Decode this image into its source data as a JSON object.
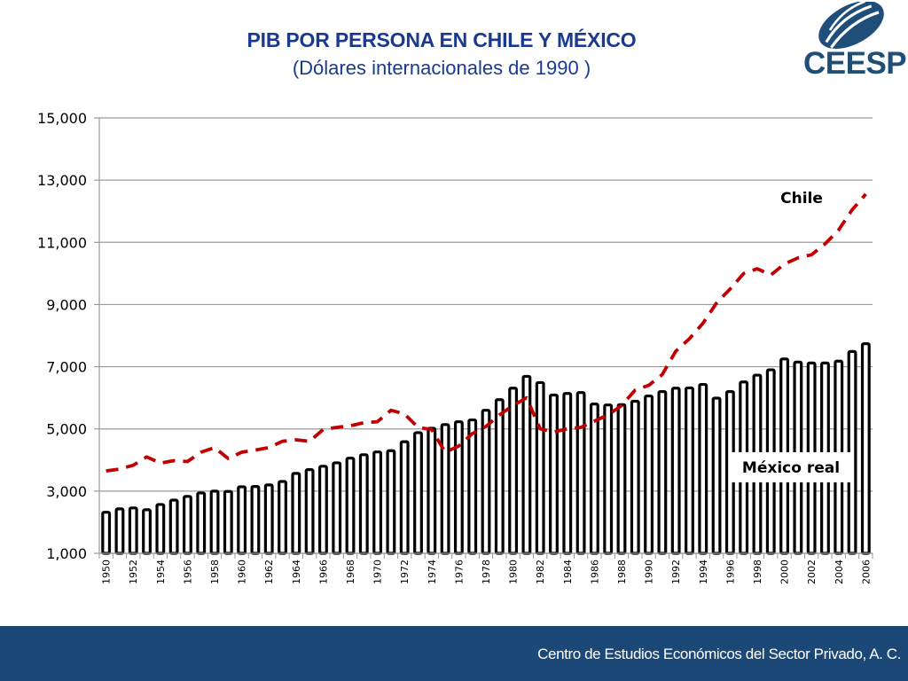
{
  "header": {
    "title": "PIB POR PERSONA EN CHILE Y MÉXICO",
    "subtitle": "(Dólares  internacionales de 1990 )"
  },
  "logo": {
    "text": "CEESP",
    "icon": "ceesp-swoosh-logo-icon",
    "color": "#1f4e79"
  },
  "footer": {
    "text": "Centro de Estudios Económicos del Sector Privado, A. C.",
    "background": "#1b4877"
  },
  "chart_data": {
    "type": "bar+line",
    "title": "PIB POR PERSONA EN CHILE Y MÉXICO",
    "subtitle": "(Dólares  internacionales de 1990 )",
    "xlabel": "",
    "ylabel": "",
    "ylim": [
      1000,
      15000
    ],
    "yticks": [
      1000,
      3000,
      5000,
      7000,
      9000,
      11000,
      13000,
      15000
    ],
    "ytick_labels": [
      "1,000",
      "3,000",
      "5,000",
      "7,000",
      "9,000",
      "11,000",
      "13,000",
      "15,000"
    ],
    "grid": true,
    "categories": [
      1950,
      1951,
      1952,
      1953,
      1954,
      1955,
      1956,
      1957,
      1958,
      1959,
      1960,
      1961,
      1962,
      1963,
      1964,
      1965,
      1966,
      1967,
      1968,
      1969,
      1970,
      1971,
      1972,
      1973,
      1974,
      1975,
      1976,
      1977,
      1978,
      1979,
      1980,
      1981,
      1982,
      1983,
      1984,
      1985,
      1986,
      1987,
      1988,
      1989,
      1990,
      1991,
      1992,
      1993,
      1994,
      1995,
      1996,
      1997,
      1998,
      1999,
      2000,
      2001,
      2002,
      2003,
      2004,
      2005,
      2006
    ],
    "xtick_labels": [
      "1950",
      "1952",
      "1954",
      "1956",
      "1958",
      "1960",
      "1962",
      "1964",
      "1966",
      "1968",
      "1970",
      "1972",
      "1974",
      "1976",
      "1978",
      "1980",
      "1982",
      "1984",
      "1986",
      "1988",
      "1990",
      "1992",
      "1994",
      "1996",
      "1998",
      "2000",
      "2002",
      "2004",
      "2006"
    ],
    "series": [
      {
        "name": "México real",
        "type": "bar",
        "color": "#000000",
        "fill": "#ffffff",
        "values": [
          2320,
          2430,
          2460,
          2400,
          2570,
          2710,
          2830,
          2940,
          3000,
          2990,
          3140,
          3150,
          3200,
          3310,
          3570,
          3690,
          3800,
          3910,
          4060,
          4170,
          4260,
          4300,
          4590,
          4880,
          5020,
          5140,
          5230,
          5290,
          5600,
          5940,
          6310,
          6690,
          6490,
          6090,
          6140,
          6170,
          5800,
          5770,
          5780,
          5890,
          6060,
          6200,
          6310,
          6320,
          6430,
          5990,
          6200,
          6510,
          6730,
          6900,
          7250,
          7150,
          7120,
          7120,
          7180,
          7490,
          7740
        ]
      },
      {
        "name": "Chile",
        "type": "line",
        "style": "dashed",
        "color": "#c00000",
        "values": [
          3650,
          3710,
          3830,
          4100,
          3900,
          3980,
          3950,
          4250,
          4400,
          4050,
          4250,
          4320,
          4400,
          4600,
          4650,
          4600,
          4980,
          5050,
          5100,
          5200,
          5230,
          5600,
          5480,
          5050,
          4980,
          4250,
          4450,
          4850,
          5080,
          5450,
          5750,
          6000,
          5000,
          4900,
          5000,
          5050,
          5250,
          5450,
          5750,
          6250,
          6400,
          6750,
          7500,
          7900,
          8400,
          9050,
          9500,
          10000,
          10150,
          9950,
          10300,
          10500,
          10600,
          10950,
          11400,
          12050,
          12550
        ]
      }
    ],
    "annotations": [
      {
        "text": "Chile",
        "series": "Chile",
        "placement": "upper-right, above line"
      },
      {
        "text": "México real",
        "series": "México real",
        "placement": "lower-right, boxed over bars"
      }
    ]
  }
}
